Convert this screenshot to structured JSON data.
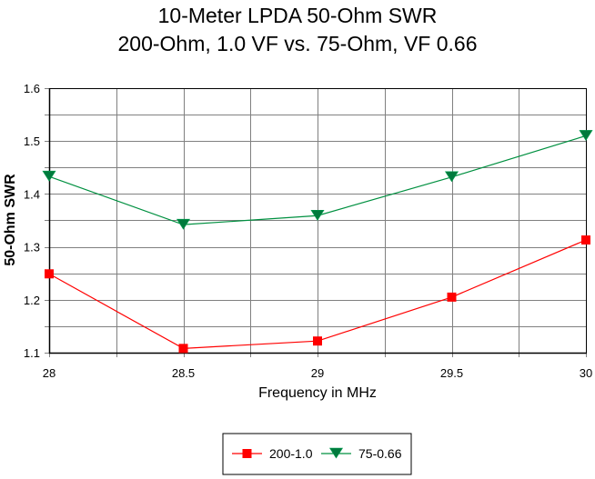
{
  "chart_data": {
    "type": "line",
    "title": "10-Meter LPDA 50-Ohm SWR",
    "subtitle": "200-Ohm, 1.0 VF vs. 75-Ohm, VF 0.66",
    "xlabel": "Frequency in MHz",
    "ylabel": "50-Ohm SWR",
    "xlim": [
      28,
      30
    ],
    "ylim": [
      1.1,
      1.6
    ],
    "x_ticks": [
      28,
      28.5,
      29,
      29.5,
      30
    ],
    "x_tick_labels": [
      "28",
      "28.5",
      "29",
      "29.5",
      "30"
    ],
    "x_minor_step": 0.25,
    "y_ticks": [
      1.1,
      1.2,
      1.3,
      1.4,
      1.5,
      1.6
    ],
    "y_tick_labels": [
      "1.1",
      "1.2",
      "1.3",
      "1.4",
      "1.5",
      "1.6"
    ],
    "y_minor_step": 0.05,
    "grid": true,
    "legend_position": "bottom-center",
    "x": [
      28,
      28.5,
      29,
      29.5,
      30
    ],
    "series": [
      {
        "name": "200-1.0",
        "color": "#ff0000",
        "marker": "square",
        "values": [
          1.249,
          1.108,
          1.122,
          1.205,
          1.313
        ]
      },
      {
        "name": "75-0.66",
        "color": "#009040",
        "marker": "triangle-down",
        "values": [
          1.433,
          1.342,
          1.359,
          1.432,
          1.51
        ]
      }
    ]
  }
}
